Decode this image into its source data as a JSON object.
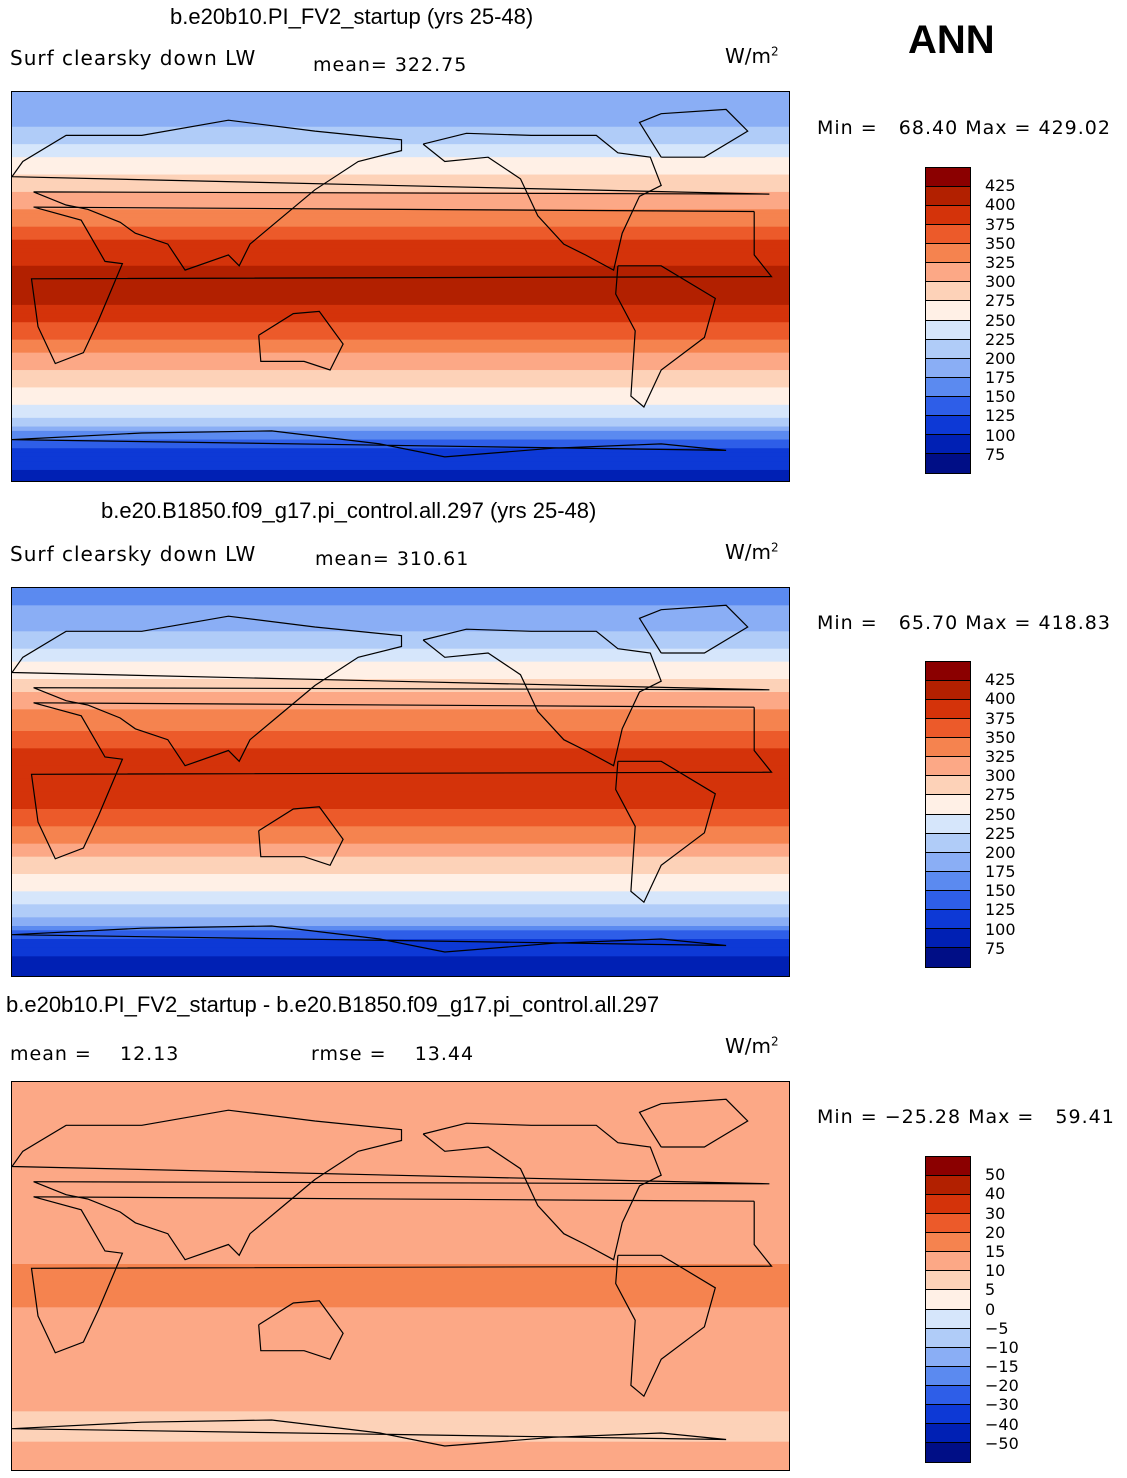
{
  "season": "ANN",
  "units_base": "W/m",
  "units_exp": "2",
  "chart_data": [
    {
      "type": "heatmap",
      "title": "b.e20b10.PI_FV2_startup (yrs 25-48)",
      "subtitle": "Surf clearsky down LW",
      "stat_text": "mean= 322.75",
      "minmax_text": "Min =   68.40 Max = 429.02",
      "levels": [
        "425",
        "400",
        "375",
        "350",
        "325",
        "300",
        "275",
        "250",
        "225",
        "200",
        "175",
        "150",
        "125",
        "100",
        "75"
      ],
      "colors": [
        "#8b0000",
        "#b22000",
        "#d4330a",
        "#ec5a2a",
        "#f5834f",
        "#fca886",
        "#fdd2b8",
        "#fff0e6",
        "#d6e6fb",
        "#b0ccf8",
        "#8aaef5",
        "#5b8af0",
        "#2e5ee8",
        "#0d39d6",
        "#0020b4",
        "#000e86"
      ],
      "bands": [
        {
          "lat": 90,
          "v": 175
        },
        {
          "lat": 75,
          "v": 195
        },
        {
          "lat": 62,
          "v": 240
        },
        {
          "lat": 52,
          "v": 275
        },
        {
          "lat": 42,
          "v": 310
        },
        {
          "lat": 30,
          "v": 345
        },
        {
          "lat": 18,
          "v": 385
        },
        {
          "lat": 5,
          "v": 410
        },
        {
          "lat": -5,
          "v": 405
        },
        {
          "lat": -15,
          "v": 380
        },
        {
          "lat": -25,
          "v": 345
        },
        {
          "lat": -35,
          "v": 310
        },
        {
          "lat": -45,
          "v": 275
        },
        {
          "lat": -55,
          "v": 245
        },
        {
          "lat": -62,
          "v": 210
        },
        {
          "lat": -68,
          "v": 165
        },
        {
          "lat": -75,
          "v": 120
        },
        {
          "lat": -90,
          "v": 85
        }
      ]
    },
    {
      "type": "heatmap",
      "title": "b.e20.B1850.f09_g17.pi_control.all.297 (yrs 25-48)",
      "subtitle": "Surf clearsky down LW",
      "stat_text": "mean= 310.61",
      "minmax_text": "Min =   65.70 Max = 418.83",
      "levels": [
        "425",
        "400",
        "375",
        "350",
        "325",
        "300",
        "275",
        "250",
        "225",
        "200",
        "175",
        "150",
        "125",
        "100",
        "75"
      ],
      "colors": [
        "#8b0000",
        "#b22000",
        "#d4330a",
        "#ec5a2a",
        "#f5834f",
        "#fca886",
        "#fdd2b8",
        "#fff0e6",
        "#d6e6fb",
        "#b0ccf8",
        "#8aaef5",
        "#5b8af0",
        "#2e5ee8",
        "#0d39d6",
        "#0020b4",
        "#000e86"
      ],
      "bands": [
        {
          "lat": 90,
          "v": 165
        },
        {
          "lat": 75,
          "v": 185
        },
        {
          "lat": 62,
          "v": 225
        },
        {
          "lat": 52,
          "v": 262
        },
        {
          "lat": 42,
          "v": 300
        },
        {
          "lat": 30,
          "v": 335
        },
        {
          "lat": 18,
          "v": 370
        },
        {
          "lat": 5,
          "v": 395
        },
        {
          "lat": -5,
          "v": 390
        },
        {
          "lat": -15,
          "v": 365
        },
        {
          "lat": -25,
          "v": 332
        },
        {
          "lat": -35,
          "v": 298
        },
        {
          "lat": -45,
          "v": 262
        },
        {
          "lat": -55,
          "v": 232
        },
        {
          "lat": -62,
          "v": 198
        },
        {
          "lat": -68,
          "v": 155
        },
        {
          "lat": -75,
          "v": 112
        },
        {
          "lat": -90,
          "v": 80
        }
      ]
    },
    {
      "type": "heatmap",
      "title": "b.e20b10.PI_FV2_startup - b.e20.B1850.f09_g17.pi_control.all.297",
      "subtitle": "",
      "stat_text": "mean =    12.13",
      "stat2_text": "rmse =    13.44",
      "minmax_text": "Min = −25.28 Max =   59.41",
      "levels": [
        "50",
        "40",
        "30",
        "20",
        "15",
        "10",
        "5",
        "0",
        "−5",
        "−10",
        "−15",
        "−20",
        "−30",
        "−40",
        "−50"
      ],
      "colors": [
        "#8b0000",
        "#b22000",
        "#d4330a",
        "#ec5a2a",
        "#f5834f",
        "#fca886",
        "#fdd2b8",
        "#fff0e6",
        "#d6e6fb",
        "#b0ccf8",
        "#8aaef5",
        "#5b8af0",
        "#2e5ee8",
        "#0d39d6",
        "#0020b4",
        "#000e86"
      ],
      "bands": [
        {
          "lat": 90,
          "v": 11
        },
        {
          "lat": 70,
          "v": 12
        },
        {
          "lat": 50,
          "v": 10
        },
        {
          "lat": 35,
          "v": 13
        },
        {
          "lat": 20,
          "v": 14
        },
        {
          "lat": 5,
          "v": 15
        },
        {
          "lat": -10,
          "v": 16
        },
        {
          "lat": -25,
          "v": 12
        },
        {
          "lat": -40,
          "v": 13
        },
        {
          "lat": -55,
          "v": 11
        },
        {
          "lat": -70,
          "v": 9
        },
        {
          "lat": -90,
          "v": 12
        }
      ]
    }
  ]
}
